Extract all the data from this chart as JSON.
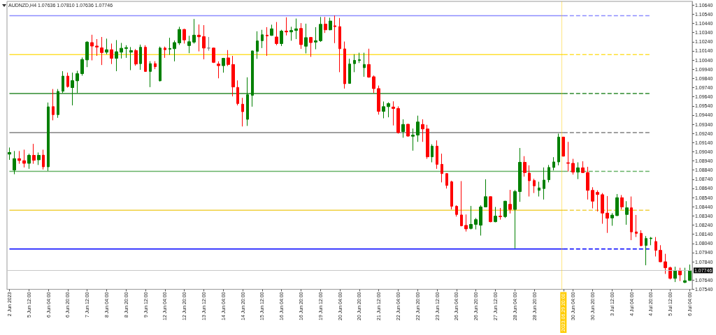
{
  "chart_data": {
    "type": "candlestick",
    "title": "AUDNZD,H4 1.07636 1.07810 1.07636 1.07746",
    "categories": [
      "2 Jun 2023",
      null,
      null,
      null,
      "5 Jun 12:00",
      null,
      null,
      null,
      "6 Jun 04:00",
      null,
      null,
      null,
      "6 Jun 20:00",
      null,
      null,
      null,
      "7 Jun 12:00",
      null,
      null,
      null,
      "8 Jun 04:00",
      null,
      null,
      null,
      "8 Jun 20:00",
      null,
      null,
      null,
      "9 Jun 12:00",
      null,
      null,
      null,
      "12 Jun 04:00",
      null,
      null,
      null,
      "12 Jun 20:00",
      null,
      null,
      null,
      "13 Jun 12:00",
      null,
      null,
      null,
      "14 Jun 04:00",
      null,
      null,
      null,
      "14 Jun 20:00",
      null,
      null,
      null,
      "15 Jun 12:00",
      null,
      null,
      null,
      "16 Jun 04:00",
      null,
      null,
      null,
      "16 Jun 20:00",
      null,
      null,
      null,
      "19 Jun 12:00",
      null,
      null,
      null,
      "20 Jun 04:00",
      null,
      null,
      null,
      "20 Jun 20:00",
      null,
      null,
      null,
      "21 Jun 12:00",
      null,
      null,
      null,
      "22 Jun 04:00",
      null,
      null,
      null,
      "22 Jun 20:00",
      null,
      null,
      null,
      "23 Jun 12:00",
      null,
      null,
      null,
      "26 Jun 04:00",
      null,
      null,
      null,
      "26 Jun 20:00",
      null,
      null,
      null,
      "27 Jun 12:00",
      null,
      null,
      null,
      "28 Jun 04:00",
      null,
      null,
      null,
      "28 Jun 20:00",
      null,
      null,
      null,
      null,
      null,
      "2023.06.29 20:00",
      null,
      "30 Jun 04:00",
      null,
      null,
      null,
      "30 Jun 20:00",
      null,
      null,
      null,
      "3 Jul 12:00",
      null,
      null,
      null,
      "4 Jul 04:00",
      null,
      null,
      null,
      "4 Jul 20:00",
      null,
      null,
      null,
      "5 Jul 12:00",
      null,
      null,
      null,
      "6 Jul 04:00"
    ],
    "ohlc": [
      [
        1.09014,
        1.09086,
        1.08952,
        1.09032
      ],
      [
        1.0884,
        1.09048,
        1.08795,
        1.08965
      ],
      [
        1.08965,
        1.09048,
        1.08909,
        1.08945
      ],
      [
        1.08943,
        1.09063,
        1.08869,
        1.08914
      ],
      [
        1.08914,
        1.09019,
        1.08854,
        1.09001
      ],
      [
        1.09001,
        1.09126,
        1.08909,
        1.08947
      ],
      [
        1.08952,
        1.09032,
        1.08896,
        1.09001
      ],
      [
        1.09003,
        1.09063,
        1.08847,
        1.08876
      ],
      [
        1.08876,
        1.09577,
        1.08831,
        1.0953
      ],
      [
        1.09532,
        1.09724,
        1.09383,
        1.09445
      ],
      [
        1.09445,
        1.09724,
        1.0941,
        1.09698
      ],
      [
        1.097,
        1.09919,
        1.0968,
        1.09865
      ],
      [
        1.09865,
        1.09903,
        1.0974,
        1.09751
      ],
      [
        1.0974,
        1.09903,
        1.09546,
        1.09816
      ],
      [
        1.09814,
        1.09923,
        1.0968,
        1.09892
      ],
      [
        1.09892,
        1.10068,
        1.0987,
        1.10046
      ],
      [
        1.10042,
        1.10247,
        1.09963,
        1.10236
      ],
      [
        1.10231,
        1.10316,
        1.10037,
        1.10193
      ],
      [
        1.10193,
        1.10269,
        1.10086,
        1.10182
      ],
      [
        1.10173,
        1.10292,
        1.09986,
        1.10122
      ],
      [
        1.10126,
        1.10274,
        1.10104,
        1.10153
      ],
      [
        1.10153,
        1.1022,
        1.09997,
        1.10059
      ],
      [
        1.10059,
        1.10258,
        1.09919,
        1.10131
      ],
      [
        1.10126,
        1.10227,
        1.10057,
        1.10169
      ],
      [
        1.10167,
        1.10202,
        1.10064,
        1.10176
      ],
      [
        1.10126,
        1.10182,
        1.0993,
        1.10144
      ],
      [
        1.10144,
        1.1016,
        1.09979,
        1.09997
      ],
      [
        1.10001,
        1.10209,
        1.09934,
        1.1018
      ],
      [
        1.1018,
        1.10202,
        1.09912,
        1.09916
      ],
      [
        1.09916,
        1.10028,
        1.09745,
        1.10001
      ],
      [
        1.10001,
        1.10028,
        1.09941,
        1.09968
      ],
      [
        1.09814,
        1.10187,
        1.09807,
        1.10171
      ],
      [
        1.10171,
        1.10187,
        1.10064,
        1.10153
      ],
      [
        1.10158,
        1.10283,
        1.10097,
        1.10167
      ],
      [
        1.10164,
        1.10254,
        1.10026,
        1.10231
      ],
      [
        1.10227,
        1.10403,
        1.10205,
        1.10374
      ],
      [
        1.10374,
        1.10381,
        1.1022,
        1.1026
      ],
      [
        1.10198,
        1.10305,
        1.10115,
        1.1024
      ],
      [
        1.10236,
        1.10488,
        1.1022,
        1.10312
      ],
      [
        1.10312,
        1.10428,
        1.10135,
        1.10294
      ],
      [
        1.10296,
        1.10421,
        1.10048,
        1.10171
      ],
      [
        1.10171,
        1.10292,
        1.10142,
        1.10171
      ],
      [
        1.10171,
        1.10176,
        1.10008,
        1.10015
      ],
      [
        1.09997,
        1.10026,
        1.09841,
        1.09979
      ],
      [
        1.09979,
        1.10064,
        1.09903,
        1.10059
      ],
      [
        1.10064,
        1.10149,
        1.09975,
        1.09992
      ],
      [
        1.09992,
        1.10086,
        1.09644,
        1.09747
      ],
      [
        1.09742,
        1.09818,
        1.09546,
        1.09566
      ],
      [
        1.09559,
        1.09628,
        1.09316,
        1.09477
      ],
      [
        1.09394,
        1.09852,
        1.09322,
        1.09662
      ],
      [
        1.09655,
        1.10144,
        1.09532,
        1.1014
      ],
      [
        1.10135,
        1.10354,
        1.10053,
        1.10249
      ],
      [
        1.10251,
        1.1037,
        1.10171,
        1.10316
      ],
      [
        1.10312,
        1.10399,
        1.10086,
        1.10303
      ],
      [
        1.10309,
        1.10426,
        1.10305,
        1.10381
      ],
      [
        1.10292,
        1.10455,
        1.10202,
        1.1022
      ],
      [
        1.1022,
        1.1037,
        1.10193,
        1.10356
      ],
      [
        1.10356,
        1.10506,
        1.10309,
        1.10347
      ],
      [
        1.10347,
        1.10403,
        1.10251,
        1.10363
      ],
      [
        1.10363,
        1.10493,
        1.10269,
        1.10381
      ],
      [
        1.10385,
        1.10443,
        1.10162,
        1.10209
      ],
      [
        1.10191,
        1.10437,
        1.10113,
        1.10285
      ],
      [
        1.10287,
        1.10292,
        1.10075,
        1.10231
      ],
      [
        1.10236,
        1.10399,
        1.10158,
        1.10251
      ],
      [
        1.10251,
        1.1051,
        1.10238,
        1.1043
      ],
      [
        1.10432,
        1.1051,
        1.10336,
        1.1037
      ],
      [
        1.1037,
        1.10502,
        1.10365,
        1.10466
      ],
      [
        1.10414,
        1.10526,
        1.10225,
        1.10405
      ],
      [
        1.10405,
        1.10499,
        1.09908,
        1.10164
      ],
      [
        1.10162,
        1.10242,
        1.09729,
        1.09782
      ],
      [
        1.09785,
        1.10055,
        1.09782,
        1.09997
      ],
      [
        1.10001,
        1.10104,
        1.09908,
        1.10037
      ],
      [
        1.10035,
        1.1012,
        1.10008,
        1.10044
      ],
      [
        1.09957,
        1.1012,
        1.09858,
        1.09992
      ],
      [
        1.09992,
        1.10164,
        1.09847,
        1.09854
      ],
      [
        1.09858,
        1.09872,
        1.0968,
        1.09729
      ],
      [
        1.09729,
        1.09762,
        1.09445,
        1.09481
      ],
      [
        1.09481,
        1.09588,
        1.09405,
        1.09532
      ],
      [
        1.09532,
        1.09579,
        1.09416,
        1.09566
      ],
      [
        1.09528,
        1.0959,
        1.09327,
        1.09512
      ],
      [
        1.09512,
        1.09535,
        1.09238,
        1.09249
      ],
      [
        1.0926,
        1.09394,
        1.09193,
        1.09338
      ],
      [
        1.0934,
        1.09343,
        1.09204,
        1.09211
      ],
      [
        1.09209,
        1.09293,
        1.09052,
        1.09222
      ],
      [
        1.09222,
        1.09434,
        1.09148,
        1.09365
      ],
      [
        1.09338,
        1.09394,
        1.09148,
        1.09289
      ],
      [
        1.09289,
        1.09334,
        1.08963,
        1.08985
      ],
      [
        1.08985,
        1.09122,
        1.08925,
        1.09101
      ],
      [
        1.09101,
        1.09164,
        1.08854,
        1.08903
      ],
      [
        1.08903,
        1.09019,
        1.08706,
        1.08802
      ],
      [
        1.08802,
        1.08807,
        1.08639,
        1.08673
      ],
      [
        1.08713,
        1.08724,
        1.08411,
        1.08445
      ],
      [
        1.08445,
        1.08456,
        1.08333,
        1.08356
      ],
      [
        1.08351,
        1.0872,
        1.08226,
        1.08233
      ],
      [
        1.08237,
        1.08356,
        1.0817,
        1.08199
      ],
      [
        1.08204,
        1.08449,
        1.08193,
        1.08248
      ],
      [
        1.08248,
        1.08318,
        1.08193,
        1.083
      ],
      [
        1.08239,
        1.08456,
        1.08126,
        1.08438
      ],
      [
        1.08438,
        1.0874,
        1.08434,
        1.0855
      ],
      [
        1.0855,
        1.08554,
        1.08271,
        1.08277
      ],
      [
        1.08277,
        1.08438,
        1.08271,
        1.08338
      ],
      [
        1.08338,
        1.08427,
        1.083,
        1.08331
      ],
      [
        1.08333,
        1.08505,
        1.08318,
        1.08501
      ],
      [
        1.08467,
        1.08624,
        1.08367,
        1.08411
      ],
      [
        1.08411,
        1.08624,
        1.07987,
        1.08606
      ],
      [
        1.08606,
        1.09081,
        1.08494,
        1.08925
      ],
      [
        1.08925,
        1.08992,
        1.08769,
        1.08813
      ],
      [
        1.08807,
        1.08892,
        1.08552,
        1.08724
      ],
      [
        1.08726,
        1.08746,
        1.0859,
        1.08668
      ],
      [
        1.08619,
        1.08713,
        1.08552,
        1.08646
      ],
      [
        1.08639,
        1.08869,
        1.08519,
        1.08731
      ],
      [
        1.08735,
        1.08896,
        1.08706,
        1.08869
      ],
      [
        1.08869,
        1.08981,
        1.08836,
        1.08929
      ],
      [
        1.08929,
        1.09238,
        1.08892,
        1.092
      ],
      [
        1.092,
        1.09204,
        1.08988,
        1.08992
      ],
      [
        1.0892,
        1.09148,
        1.08824,
        1.08914
      ],
      [
        1.08914,
        1.08963,
        1.08791,
        1.08818
      ],
      [
        1.08818,
        1.08925,
        1.08742,
        1.08865
      ],
      [
        1.08865,
        1.08936,
        1.08809,
        1.08813
      ],
      [
        1.08813,
        1.08876,
        1.08519,
        1.08619
      ],
      [
        1.08619,
        1.08653,
        1.08423,
        1.08501
      ],
      [
        1.08597,
        1.08619,
        1.08389,
        1.08574
      ],
      [
        1.08572,
        1.0859,
        1.08255,
        1.08371
      ],
      [
        1.08371,
        1.08557,
        1.08155,
        1.08315
      ],
      [
        1.08318,
        1.08371,
        1.08233,
        1.08349
      ],
      [
        1.08344,
        1.08579,
        1.0834,
        1.08539
      ],
      [
        1.08539,
        1.08568,
        1.08411,
        1.08438
      ],
      [
        1.08356,
        1.08501,
        1.08244,
        1.08429
      ],
      [
        1.08429,
        1.08552,
        1.08076,
        1.08166
      ],
      [
        1.08166,
        1.08351,
        1.0811,
        1.0815
      ],
      [
        1.0815,
        1.08184,
        1.08009,
        1.08016
      ],
      [
        1.08018,
        1.08121,
        1.07802,
        1.08094
      ],
      [
        1.08092,
        1.0811,
        1.08021,
        1.08099
      ],
      [
        1.08061,
        1.0811,
        1.07898,
        1.07965
      ],
      [
        1.07965,
        1.08021,
        1.07835,
        1.0784
      ],
      [
        1.0784,
        1.07927,
        1.07708,
        1.07775
      ],
      [
        1.07775,
        1.07786,
        1.07648,
        1.07659
      ],
      [
        1.07659,
        1.07786,
        1.07619,
        1.07741
      ],
      [
        1.07741,
        1.07775,
        1.0763,
        1.07697
      ],
      [
        1.07616,
        1.07775,
        1.07607,
        1.07634
      ],
      [
        1.07636,
        1.0781,
        1.07636,
        1.07746
      ]
    ],
    "colors": [
      "#008000",
      "#008000",
      "#ff0000",
      "#ff0000",
      "#008000",
      "#ff0000",
      "#008000",
      "#ff0000",
      "#008000",
      "#ff0000",
      "#008000",
      "#008000",
      "#ff0000",
      "#008000",
      "#008000",
      "#008000",
      "#008000",
      "#ff0000",
      "#ff0000",
      "#ff0000",
      "#008000",
      "#ff0000",
      "#008000",
      "#008000",
      "#008000",
      "#008000",
      "#ff0000",
      "#008000",
      "#ff0000",
      "#008000",
      "#ff0000",
      "#008000",
      "#ff0000",
      "#008000",
      "#008000",
      "#008000",
      "#ff0000",
      "#008000",
      "#008000",
      "#ff0000",
      "#ff0000",
      "#808080",
      "#ff0000",
      "#ff0000",
      "#008000",
      "#ff0000",
      "#ff0000",
      "#ff0000",
      "#ff0000",
      "#008000",
      "#008000",
      "#008000",
      "#008000",
      "#ff0000",
      "#008000",
      "#ff0000",
      "#008000",
      "#ff0000",
      "#008000",
      "#008000",
      "#ff0000",
      "#008000",
      "#ff0000",
      "#008000",
      "#008000",
      "#ff0000",
      "#008000",
      "#ff0000",
      "#ff0000",
      "#ff0000",
      "#008000",
      "#008000",
      "#008000",
      "#008000",
      "#ff0000",
      "#ff0000",
      "#ff0000",
      "#008000",
      "#008000",
      "#ff0000",
      "#ff0000",
      "#008000",
      "#ff0000",
      "#008000",
      "#008000",
      "#ff0000",
      "#ff0000",
      "#008000",
      "#ff0000",
      "#ff0000",
      "#ff0000",
      "#ff0000",
      "#ff0000",
      "#ff0000",
      "#ff0000",
      "#008000",
      "#008000",
      "#008000",
      "#008000",
      "#ff0000",
      "#008000",
      "#ff0000",
      "#008000",
      "#ff0000",
      "#008000",
      "#008000",
      "#ff0000",
      "#ff0000",
      "#ff0000",
      "#008000",
      "#008000",
      "#008000",
      "#008000",
      "#008000",
      "#ff0000",
      "#ff0000",
      "#ff0000",
      "#008000",
      "#ff0000",
      "#ff0000",
      "#ff0000",
      "#ff0000",
      "#ff0000",
      "#ff0000",
      "#008000",
      "#008000",
      "#ff0000",
      "#008000",
      "#ff0000",
      "#ff0000",
      "#ff0000",
      "#008000",
      "#008000",
      "#ff0000",
      "#ff0000",
      "#ff0000",
      "#ff0000",
      "#008000",
      "#ff0000",
      "#008000",
      "#008000"
    ],
    "series": [
      {
        "type": "line",
        "x": [
          "2 Jun 2023",
          "2023.06.29 20:00"
        ],
        "values": [
          1.10524,
          1.10524
        ],
        "color": "#8c8cff",
        "line_style": "solid"
      },
      {
        "type": "line",
        "x": [
          "2023.06.29 20:00",
          "4 Jul 20:00"
        ],
        "values": [
          1.10524,
          1.10524
        ],
        "color": "#8c8cff",
        "line_style": "dashed"
      },
      {
        "type": "line",
        "x": [
          "2 Jun 2023",
          "2023.06.29 20:00"
        ],
        "values": [
          1.101,
          1.101
        ],
        "color": "#ffe033",
        "line_style": "solid"
      },
      {
        "type": "line",
        "x": [
          "2023.06.29 20:00",
          "4 Jul 20:00"
        ],
        "values": [
          1.101,
          1.101
        ],
        "color": "#ffe033",
        "line_style": "dashed"
      },
      {
        "type": "line",
        "x": [
          "2 Jun 2023",
          "2023.06.29 20:00"
        ],
        "values": [
          1.09675,
          1.09675
        ],
        "color": "#2e8b2e",
        "line_style": "solid"
      },
      {
        "type": "line",
        "x": [
          "2023.06.29 20:00",
          "4 Jul 20:00"
        ],
        "values": [
          1.09675,
          1.09675
        ],
        "color": "#2e8b2e",
        "line_style": "dashed"
      },
      {
        "type": "line",
        "x": [
          "2 Jun 2023",
          "2023.06.29 20:00"
        ],
        "values": [
          1.09249,
          1.09249
        ],
        "color": "#808080",
        "line_style": "solid"
      },
      {
        "type": "line",
        "x": [
          "2023.06.29 20:00",
          "4 Jul 20:00"
        ],
        "values": [
          1.09249,
          1.09249
        ],
        "color": "#808080",
        "line_style": "dashed"
      },
      {
        "type": "line",
        "x": [
          "2 Jun 2023",
          "2023.06.29 20:00"
        ],
        "values": [
          1.08827,
          1.08827
        ],
        "color": "#66b266",
        "line_style": "solid"
      },
      {
        "type": "line",
        "x": [
          "2023.06.29 20:00",
          "4 Jul 20:00"
        ],
        "values": [
          1.08827,
          1.08827
        ],
        "color": "#66b266",
        "line_style": "dashed"
      },
      {
        "type": "line",
        "x": [
          "2 Jun 2023",
          "2023.06.29 20:00"
        ],
        "values": [
          1.08402,
          1.08402
        ],
        "color": "#f0d040",
        "line_style": "solid"
      },
      {
        "type": "line",
        "x": [
          "2023.06.29 20:00",
          "4 Jul 20:00"
        ],
        "values": [
          1.08402,
          1.08402
        ],
        "color": "#f0d040",
        "line_style": "dashed"
      },
      {
        "type": "line",
        "x": [
          "2 Jun 2023",
          "2023.06.29 20:00"
        ],
        "values": [
          1.0798,
          1.0798
        ],
        "color": "#0000ff",
        "line_style": "solid"
      },
      {
        "type": "line",
        "x": [
          "2023.06.29 20:00",
          "4 Jul 20:00"
        ],
        "values": [
          1.0798,
          1.0798
        ],
        "color": "#0000ff",
        "line_style": "dashed"
      }
    ],
    "marker": "none",
    "ylim": [
      1.0754,
      1.1068
    ],
    "yticks": [
      {
        "value": 1.0754,
        "label": "1.07540"
      },
      {
        "value": 1.0764,
        "label": "1.07640"
      },
      {
        "value": 1.0784,
        "label": "1.07840"
      },
      {
        "value": 1.0794,
        "label": "1.07940"
      },
      {
        "value": 1.0804,
        "label": "1.08040"
      },
      {
        "value": 1.0814,
        "label": "1.08140"
      },
      {
        "value": 1.0824,
        "label": "1.08240"
      },
      {
        "value": 1.0834,
        "label": "1.08340"
      },
      {
        "value": 1.0844,
        "label": "1.08440"
      },
      {
        "value": 1.0854,
        "label": "1.08540"
      },
      {
        "value": 1.0864,
        "label": "1.08640"
      },
      {
        "value": 1.0874,
        "label": "1.08740"
      },
      {
        "value": 1.0884,
        "label": "1.08840"
      },
      {
        "value": 1.0894,
        "label": "1.08940"
      },
      {
        "value": 1.0904,
        "label": "1.09040"
      },
      {
        "value": 1.0914,
        "label": "1.09140"
      },
      {
        "value": 1.0924,
        "label": "1.09240"
      },
      {
        "value": 1.0934,
        "label": "1.09340"
      },
      {
        "value": 1.0944,
        "label": "1.09440"
      },
      {
        "value": 1.0954,
        "label": "1.09540"
      },
      {
        "value": 1.0964,
        "label": "1.09640"
      },
      {
        "value": 1.0974,
        "label": "1.09740"
      },
      {
        "value": 1.0984,
        "label": "1.09840"
      },
      {
        "value": 1.0994,
        "label": "1.09940"
      },
      {
        "value": 1.1004,
        "label": "1.10040"
      },
      {
        "value": 1.1014,
        "label": "1.10140"
      },
      {
        "value": 1.1024,
        "label": "1.10240"
      },
      {
        "value": 1.1034,
        "label": "1.10340"
      },
      {
        "value": 1.1044,
        "label": "1.10440"
      },
      {
        "value": 1.1054,
        "label": "1.10540"
      },
      {
        "value": 1.1064,
        "label": "1.10640"
      }
    ],
    "ref_lines": [
      {
        "axis": "y",
        "value": 1.07746,
        "label": "1.07746",
        "color": "#c8c8c8",
        "line_style": "solid"
      },
      {
        "axis": "x",
        "value": "2023.06.29 20:00",
        "color": "#ffcc00",
        "line_style": "dotted"
      }
    ]
  }
}
